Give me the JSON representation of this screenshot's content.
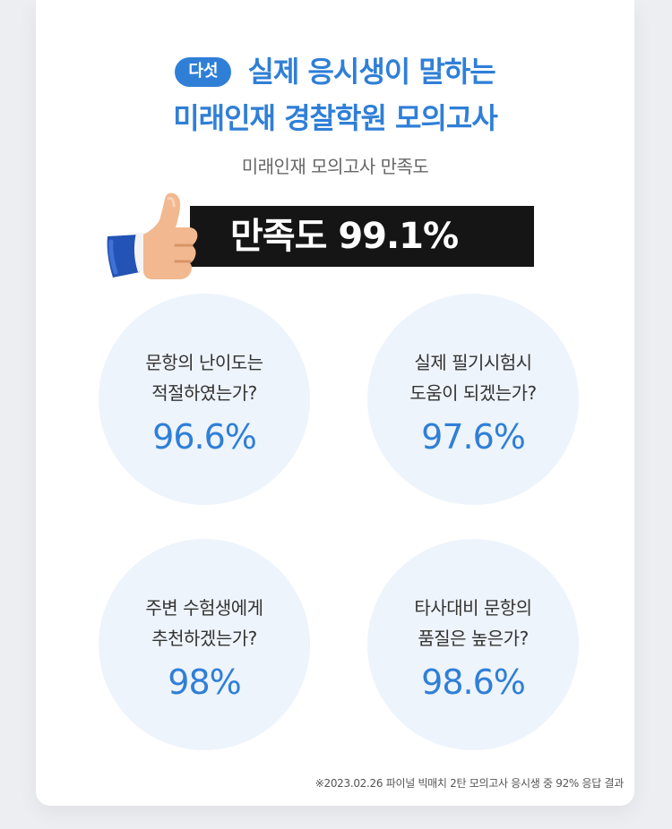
{
  "header": {
    "badge": "다섯",
    "title_line1": "실제 응시생이 말하는",
    "title_line2": "미래인재 경찰학원 모의고사",
    "subtitle": "미래인재 모의고사 만족도"
  },
  "banner": {
    "text": "만족도 99.1%",
    "icon": "thumbs-up-icon"
  },
  "stats": [
    {
      "question_line1": "문항의 난이도는",
      "question_line2": "적절하였는가?",
      "value": "96.6%"
    },
    {
      "question_line1": "실제 필기시험시",
      "question_line2": "도움이 되겠는가?",
      "value": "97.6%"
    },
    {
      "question_line1": "주변 수험생에게",
      "question_line2": "추천하겠는가?",
      "value": "98%"
    },
    {
      "question_line1": "타사대비 문항의",
      "question_line2": "품질은 높은가?",
      "value": "98.6%"
    }
  ],
  "footnote": "※2023.02.26 파이널 빅매치 2탄 모의고사 응시생 중 92% 응답 결과",
  "colors": {
    "accent": "#2f7fd7",
    "banner_bg": "#151515",
    "circle_bg": "#eef4fb"
  }
}
